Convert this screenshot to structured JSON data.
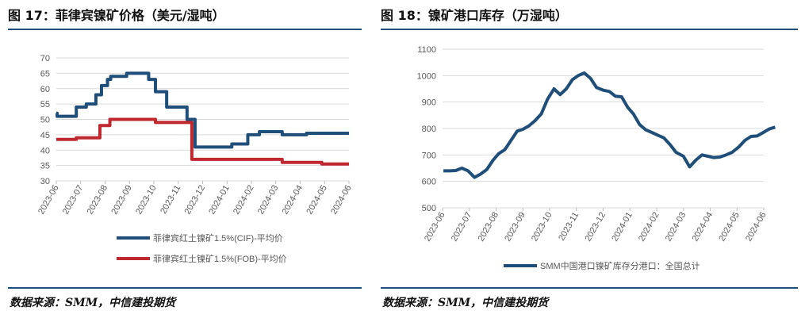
{
  "left": {
    "title": "图 17：菲律宾镍矿价格（美元/湿吨）",
    "source": "数据来源：SMM，中信建投期货"
  },
  "right": {
    "title": "图 18：镍矿港口库存（万湿吨）",
    "source": "数据来源：SMM，中信建投期货"
  },
  "colors": {
    "rule": "#1f4e79",
    "cif": "#1f4e79",
    "fob": "#c0282f",
    "stock": "#1f4e79"
  },
  "chart_data": [
    {
      "type": "line",
      "step": true,
      "ylim": [
        30,
        70
      ],
      "yticks": [
        30,
        35,
        40,
        45,
        50,
        55,
        60,
        65,
        70
      ],
      "xticks": [
        "2023-06",
        "2023-07",
        "2023-08",
        "2023-09",
        "2023-10",
        "2023-11",
        "2023-12",
        "2024-01",
        "2024-02",
        "2024-03",
        "2024-04",
        "2024-05",
        "2024-06"
      ],
      "grid": true,
      "legend": "bottom",
      "series": [
        {
          "name": "菲律宾红土镍矿1.5%(CIF)-平均价",
          "x": [
            "2023-06-01",
            "2023-06-02",
            "2023-06-26",
            "2023-07-08",
            "2023-07-20",
            "2023-07-27",
            "2023-08-04",
            "2023-08-08",
            "2023-08-28",
            "2023-09-25",
            "2023-10-03",
            "2023-10-17",
            "2023-11-12",
            "2023-11-22",
            "2024-01-07",
            "2024-01-27",
            "2024-02-11",
            "2024-03-09",
            "2024-04-09",
            "2024-06-01"
          ],
          "values": [
            52,
            51,
            54,
            55,
            58,
            61,
            63,
            64,
            65,
            63,
            59,
            54,
            50,
            41,
            42,
            45,
            46,
            45,
            45.5,
            45.5
          ]
        },
        {
          "name": "菲律宾红土镍矿1.5%(FOB)-平均价",
          "x": [
            "2023-06-01",
            "2023-06-26",
            "2023-07-25",
            "2023-08-07",
            "2023-10-03",
            "2023-11-18",
            "2024-03-09",
            "2024-04-28",
            "2024-06-01"
          ],
          "values": [
            43.5,
            44,
            48,
            50,
            49,
            37,
            36,
            35.5,
            35.5
          ]
        }
      ]
    },
    {
      "type": "line",
      "ylim": [
        500,
        1100
      ],
      "yticks": [
        500,
        600,
        700,
        800,
        900,
        1000,
        1100
      ],
      "xticks": [
        "2023-06",
        "2023-07",
        "2023-08",
        "2023-09",
        "2023-10",
        "2023-11",
        "2023-12",
        "2024-01",
        "2024-02",
        "2024-03",
        "2024-04",
        "2024-05",
        "2024-06"
      ],
      "grid": true,
      "legend": "bottom",
      "series": [
        {
          "name": "SMM中国港口镍矿库存分港口：全国总计",
          "x": [
            "2023-06-02",
            "2023-06-09",
            "2023-06-16",
            "2023-06-23",
            "2023-06-30",
            "2023-07-07",
            "2023-07-14",
            "2023-07-21",
            "2023-07-28",
            "2023-08-04",
            "2023-08-11",
            "2023-08-18",
            "2023-08-25",
            "2023-09-01",
            "2023-09-08",
            "2023-09-15",
            "2023-09-22",
            "2023-09-29",
            "2023-10-06",
            "2023-10-13",
            "2023-10-20",
            "2023-10-27",
            "2023-11-03",
            "2023-11-10",
            "2023-11-17",
            "2023-11-24",
            "2023-12-01",
            "2023-12-08",
            "2023-12-15",
            "2023-12-22",
            "2023-12-29",
            "2024-01-05",
            "2024-01-12",
            "2024-01-19",
            "2024-01-26",
            "2024-02-02",
            "2024-02-09",
            "2024-02-16",
            "2024-02-23",
            "2024-03-01",
            "2024-03-08",
            "2024-03-15",
            "2024-03-22",
            "2024-03-29",
            "2024-04-05",
            "2024-04-12",
            "2024-04-19",
            "2024-04-26",
            "2024-05-03",
            "2024-05-10",
            "2024-05-17",
            "2024-05-24",
            "2024-05-31",
            "2024-06-07",
            "2024-06-14"
          ],
          "values": [
            640,
            640,
            641,
            650,
            640,
            615,
            628,
            645,
            680,
            705,
            720,
            755,
            790,
            797,
            810,
            830,
            855,
            910,
            950,
            928,
            950,
            985,
            1000,
            1010,
            990,
            955,
            945,
            940,
            922,
            920,
            880,
            855,
            815,
            795,
            785,
            775,
            765,
            740,
            710,
            695,
            655,
            680,
            700,
            695,
            690,
            692,
            700,
            710,
            730,
            755,
            770,
            772,
            785,
            798,
            805
          ]
        }
      ]
    }
  ]
}
